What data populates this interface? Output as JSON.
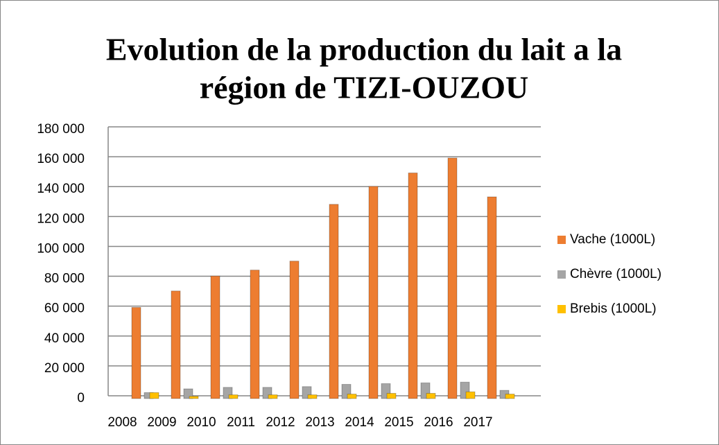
{
  "chart_data": {
    "type": "bar",
    "title": [
      "Evolution de la production du lait a la",
      "région de TIZI-OUZOU"
    ],
    "categories": [
      "2008",
      "2009",
      "2010",
      "2011",
      "2012",
      "2013",
      "2014",
      "2015",
      "2016",
      "2017"
    ],
    "series": [
      {
        "name": "Vache  (1000L)",
        "color": "#ed7d31",
        "values": [
          61000,
          72000,
          82000,
          86000,
          92000,
          130000,
          142000,
          151000,
          161000,
          135000
        ]
      },
      {
        "name": "Chèvre (1000L)",
        "color": "#a5a5a5",
        "values": [
          4000,
          6500,
          7500,
          7500,
          8000,
          9500,
          10000,
          10500,
          11000,
          5500
        ]
      },
      {
        "name": "Brebis  (1000L)",
        "color": "#ffc000",
        "values": [
          4000,
          1500,
          2500,
          2500,
          2500,
          3000,
          3500,
          3500,
          4500,
          3000
        ]
      }
    ],
    "ylim": [
      0,
      180000
    ],
    "yticks": [
      0,
      {
        "value": 20000,
        "label": "20 000"
      },
      {
        "value": 40000,
        "label": "40 000"
      },
      {
        "value": 60000,
        "label": "60 000"
      },
      {
        "value": 80000,
        "label": "80 000"
      },
      {
        "value": 100000,
        "label": "100 000"
      },
      {
        "value": 120000,
        "label": "120 000"
      },
      {
        "value": 140000,
        "label": "140 000"
      },
      {
        "value": 160000,
        "label": "160 000"
      },
      {
        "value": 180000,
        "label": "180 000"
      }
    ],
    "grid": true,
    "legend": "right"
  }
}
